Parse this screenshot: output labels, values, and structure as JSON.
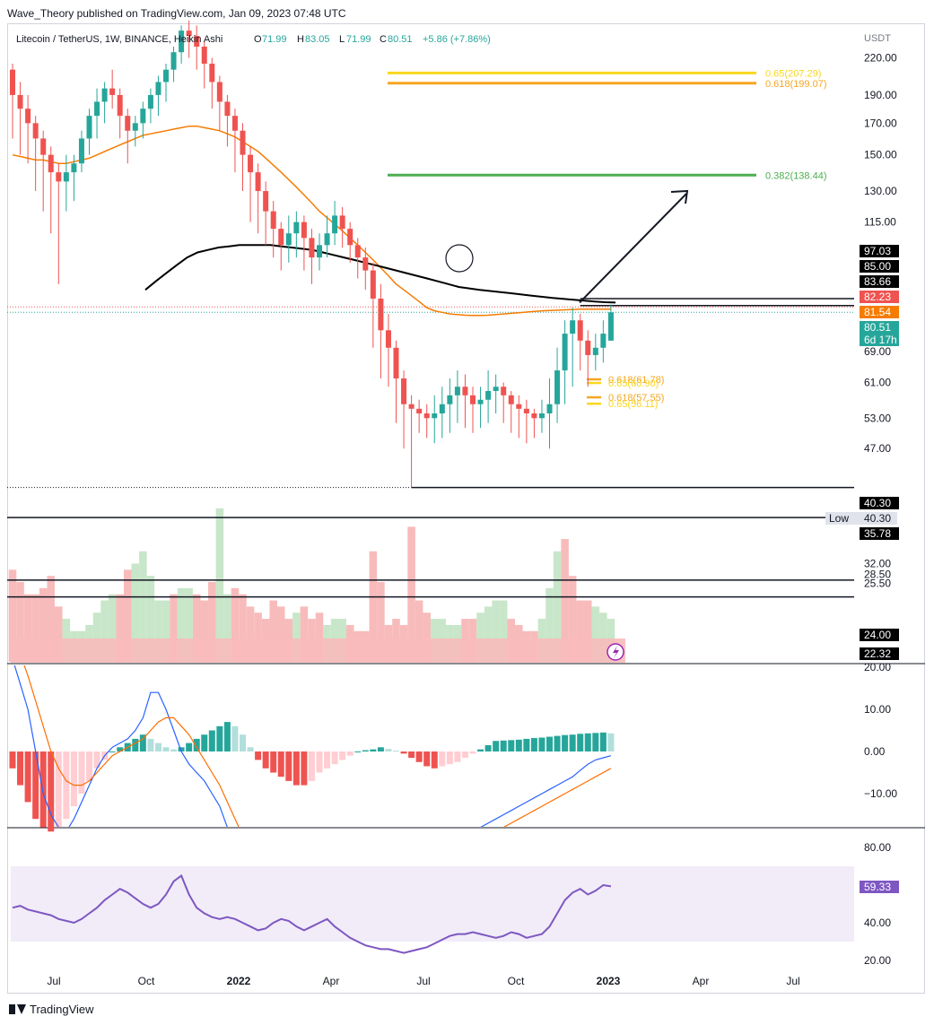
{
  "header": {
    "publisher": "Wave_Theory published on TradingView.com, Jan 09, 2023 07:48 UTC"
  },
  "legend": {
    "symbol": "Litecoin / TetherUS, 1W, BINANCE, Heikin Ashi",
    "o_label": "O",
    "o_value": "71.99",
    "h_label": "H",
    "h_value": "83.05",
    "l_label": "L",
    "l_value": "71.99",
    "c_label": "C",
    "c_value": "80.51",
    "change": "+5.86 (+7.86%)"
  },
  "footer": {
    "brand": "TradingView"
  },
  "colors": {
    "up": "#26a69a",
    "down": "#ef5350",
    "ema": "#f57c00",
    "ma200": "#000000",
    "fib_gold": "#f9d71c",
    "fib_orange": "#f5a623",
    "fib_green": "#4caf50",
    "macd": "#2962ff",
    "signal": "#ff6d00",
    "rsi": "#7e57c2",
    "vol_up": "#c8e6c9",
    "vol_down": "#f8bbbb"
  },
  "chart_data": [
    {
      "type": "candlestick",
      "name": "price",
      "scale": "log",
      "currency_label": "USDT",
      "x_ticks": [
        "Jul",
        "Oct",
        "2022",
        "Apr",
        "Jul",
        "Oct",
        "2023",
        "Apr",
        "Jul"
      ],
      "y_ticks": [
        "220.00",
        "190.00",
        "170.00",
        "150.00",
        "130.00",
        "115.00",
        "69.00",
        "61.00",
        "53.00",
        "47.00"
      ],
      "candles": [
        [
          210,
          190,
          215,
          160
        ],
        [
          190,
          180,
          200,
          150
        ],
        [
          180,
          170,
          190,
          145
        ],
        [
          170,
          160,
          175,
          130
        ],
        [
          160,
          150,
          165,
          120
        ],
        [
          150,
          140,
          155,
          110
        ],
        [
          140,
          135,
          145,
          90
        ],
        [
          135,
          140,
          150,
          120
        ],
        [
          140,
          145,
          150,
          125
        ],
        [
          145,
          160,
          165,
          140
        ],
        [
          160,
          175,
          180,
          150
        ],
        [
          175,
          185,
          195,
          160
        ],
        [
          185,
          195,
          200,
          170
        ],
        [
          195,
          190,
          210,
          180
        ],
        [
          190,
          175,
          195,
          160
        ],
        [
          175,
          165,
          180,
          145
        ],
        [
          165,
          170,
          175,
          155
        ],
        [
          170,
          180,
          185,
          160
        ],
        [
          180,
          190,
          195,
          170
        ],
        [
          190,
          200,
          205,
          175
        ],
        [
          200,
          210,
          215,
          185
        ],
        [
          210,
          225,
          230,
          200
        ],
        [
          225,
          245,
          250,
          215
        ],
        [
          245,
          240,
          255,
          220
        ],
        [
          240,
          230,
          250,
          210
        ],
        [
          230,
          215,
          235,
          195
        ],
        [
          215,
          200,
          220,
          180
        ],
        [
          200,
          185,
          205,
          165
        ],
        [
          185,
          175,
          190,
          155
        ],
        [
          175,
          165,
          180,
          140
        ],
        [
          165,
          150,
          170,
          130
        ],
        [
          150,
          140,
          155,
          115
        ],
        [
          140,
          130,
          145,
          110
        ],
        [
          130,
          120,
          135,
          105
        ],
        [
          120,
          112,
          125,
          100
        ],
        [
          112,
          105,
          115,
          95
        ],
        [
          105,
          110,
          118,
          98
        ],
        [
          110,
          115,
          120,
          100
        ],
        [
          115,
          108,
          118,
          95
        ],
        [
          108,
          100,
          112,
          90
        ],
        [
          100,
          105,
          110,
          95
        ],
        [
          105,
          110,
          118,
          100
        ],
        [
          110,
          118,
          125,
          105
        ],
        [
          118,
          112,
          122,
          104
        ],
        [
          112,
          105,
          115,
          98
        ],
        [
          105,
          100,
          108,
          92
        ],
        [
          100,
          95,
          104,
          88
        ],
        [
          95,
          85,
          98,
          70
        ],
        [
          85,
          75,
          90,
          62
        ],
        [
          75,
          70,
          80,
          60
        ],
        [
          70,
          62,
          72,
          52
        ],
        [
          62,
          56,
          64,
          47
        ],
        [
          56,
          55,
          58,
          40.3
        ],
        [
          55,
          54,
          57,
          50
        ],
        [
          54,
          53,
          56,
          49
        ],
        [
          53,
          54,
          58,
          48
        ],
        [
          54,
          56,
          60,
          49
        ],
        [
          56,
          58,
          62,
          50
        ],
        [
          58,
          60,
          64,
          52
        ],
        [
          60,
          58,
          63,
          51
        ],
        [
          58,
          56,
          60,
          50
        ],
        [
          56,
          57,
          60,
          51
        ],
        [
          57,
          59,
          64,
          52
        ],
        [
          59,
          60,
          63,
          54
        ],
        [
          60,
          58,
          61,
          52
        ],
        [
          58,
          56,
          59,
          50
        ],
        [
          56,
          55,
          58,
          49
        ],
        [
          55,
          54,
          57,
          48
        ],
        [
          54,
          53,
          55,
          49
        ],
        [
          53,
          54,
          57,
          50
        ],
        [
          54,
          56,
          62,
          47
        ],
        [
          56,
          64,
          70,
          52
        ],
        [
          64,
          74,
          78,
          56
        ],
        [
          74,
          78,
          82,
          60
        ],
        [
          78,
          72,
          80,
          64
        ],
        [
          72,
          68,
          75,
          60
        ],
        [
          68,
          70,
          74,
          64
        ],
        [
          70,
          74,
          78,
          66
        ],
        [
          71.99,
          80.51,
          83.05,
          71.99
        ]
      ],
      "ema": [
        150,
        149,
        148,
        147,
        147,
        146,
        145,
        145,
        146,
        147,
        148,
        150,
        152,
        154,
        156,
        158,
        160,
        162,
        163,
        164,
        165,
        166,
        167,
        168,
        168,
        167,
        166,
        165,
        163,
        161,
        158,
        155,
        152,
        148,
        144,
        140,
        136,
        132,
        128,
        124,
        120,
        117,
        114,
        111,
        108,
        105,
        102,
        99,
        96,
        93,
        90,
        88,
        86,
        84,
        82,
        81,
        80.5,
        80,
        79.8,
        79.6,
        79.5,
        79.5,
        79.6,
        79.8,
        80,
        80.2,
        80.4,
        80.6,
        80.8,
        81,
        81.1,
        81.2,
        81.3,
        81.4,
        81.5,
        81.5,
        81.5,
        81.54,
        81.54
      ],
      "ma200_start_index": 14,
      "ma200": [
        88,
        91,
        94,
        97,
        100,
        102,
        103,
        104,
        104.5,
        105,
        105,
        105,
        105,
        104.5,
        104,
        103.5,
        103,
        102,
        101,
        100,
        99,
        98,
        97,
        96,
        95,
        94,
        93,
        92,
        91,
        90,
        89,
        88.5,
        88,
        87.6,
        87.2,
        86.8,
        86.4,
        86,
        85.6,
        85.2,
        84.9,
        84.6,
        84.3,
        84,
        83.8,
        83.66
      ],
      "swing_low": 40.3,
      "swing_low_index": 52,
      "breakout_index": 76,
      "arrow_start": 83.66,
      "arrow_target": 138.44,
      "fib_levels": [
        {
          "label": "0.65(207.29)",
          "value": 207.29,
          "color": "#f9d71c"
        },
        {
          "label": "0.618(199.07)",
          "value": 199.07,
          "color": "#f5a623"
        },
        {
          "label": "0.382(138.44)",
          "value": 138.44,
          "color": "#4caf50"
        },
        {
          "label": "0.618(61.78)",
          "value": 61.78,
          "color": "#f5a623"
        },
        {
          "label": "0.65(60.90)",
          "value": 60.9,
          "color": "#f9d71c"
        },
        {
          "label": "0.618(57.55)",
          "value": 57.55,
          "color": "#f5a623"
        },
        {
          "label": "0.65(56.11)",
          "value": 56.11,
          "color": "#f9d71c"
        }
      ],
      "price_labels": [
        {
          "text": "97.03",
          "value": 97.03,
          "bg": "#000000",
          "fg": "#ffffff"
        },
        {
          "text": "85.00",
          "value": 85.0,
          "bg": "#000000",
          "fg": "#ffffff"
        },
        {
          "text": "83.66",
          "value": 83.66,
          "bg": "#000000",
          "fg": "#ffffff"
        },
        {
          "text": "82.23",
          "value": 82.23,
          "bg": "#ef5350",
          "fg": "#ffffff"
        },
        {
          "text": "81.54",
          "value": 81.54,
          "bg": "#f57c00",
          "fg": "#ffffff"
        },
        {
          "text": "80.51",
          "sub": "6d 17h",
          "value": 80.51,
          "bg": "#26a69a",
          "fg": "#ffffff"
        },
        {
          "text": "40.30",
          "value": 40.3,
          "bg": "#000000",
          "fg": "#ffffff"
        },
        {
          "text": "40.30",
          "prefix": "Low",
          "value": 40.3,
          "bg": "#e0e3eb",
          "fg": "#131722"
        },
        {
          "text": "35.78",
          "value": 35.78,
          "bg": "#000000",
          "fg": "#ffffff"
        }
      ]
    },
    {
      "type": "area",
      "name": "volume",
      "y_ticks": [
        "32.00",
        "28.50",
        "25.50"
      ],
      "values": [
        30,
        26,
        22,
        22,
        24,
        28,
        18,
        14,
        10,
        10,
        12,
        16,
        20,
        22,
        22,
        30,
        32,
        36,
        28,
        20,
        20,
        22,
        24,
        24,
        22,
        20,
        26,
        50,
        22,
        24,
        22,
        18,
        16,
        14,
        20,
        18,
        14,
        16,
        18,
        14,
        16,
        12,
        14,
        14,
        12,
        10,
        10,
        36,
        26,
        12,
        14,
        12,
        44,
        20,
        16,
        14,
        14,
        12,
        12,
        14,
        14,
        16,
        18,
        20,
        20,
        14,
        12,
        10,
        10,
        14,
        24,
        36,
        40,
        28,
        20,
        20,
        18,
        16,
        14
      ],
      "down_flags": [
        1,
        1,
        1,
        1,
        1,
        1,
        1,
        0,
        0,
        0,
        0,
        0,
        0,
        0,
        1,
        1,
        0,
        0,
        0,
        0,
        0,
        1,
        0,
        0,
        1,
        1,
        1,
        0,
        0,
        1,
        1,
        1,
        1,
        1,
        1,
        1,
        1,
        0,
        1,
        1,
        1,
        0,
        0,
        0,
        1,
        1,
        1,
        1,
        1,
        1,
        1,
        1,
        1,
        1,
        1,
        0,
        0,
        0,
        0,
        1,
        1,
        0,
        0,
        0,
        0,
        1,
        1,
        1,
        1,
        0,
        0,
        0,
        1,
        1,
        1,
        1,
        0,
        0,
        0
      ],
      "right_labels": [
        {
          "text": "24.00",
          "value": 24.0,
          "bg": "#000000",
          "fg": "#ffffff"
        },
        {
          "text": "22.32",
          "value": 22.32,
          "bg": "#000000",
          "fg": "#ffffff"
        }
      ]
    },
    {
      "type": "bar",
      "name": "macd",
      "y_ticks": [
        "20.00",
        "10.00",
        "0.00",
        "−10.00"
      ],
      "histogram": [
        -4,
        -8,
        -12,
        -16,
        -18,
        -19,
        -18,
        -16,
        -13,
        -10,
        -7,
        -4,
        -2,
        0,
        1,
        2,
        3,
        4,
        3,
        2,
        1,
        0.5,
        1,
        2,
        3,
        4,
        5,
        6,
        7,
        6,
        4,
        1,
        -2,
        -4,
        -5,
        -6,
        -7,
        -8,
        -8,
        -7,
        -5,
        -4,
        -3,
        -2,
        -1,
        0,
        0.3,
        0.5,
        1,
        0.6,
        0.2,
        -0.5,
        -1.5,
        -2.5,
        -3.5,
        -4,
        -3.5,
        -3,
        -2.5,
        -1.5,
        -0.5,
        0.5,
        1.5,
        2.5,
        2.6,
        2.7,
        2.8,
        3,
        3.2,
        3.3,
        3.5,
        3.7,
        3.9,
        4,
        4.2,
        4.3,
        4.4,
        4.5,
        4.3
      ],
      "macd_line": [
        22,
        16,
        10,
        0,
        -10,
        -15,
        -18,
        -19,
        -16,
        -12,
        -8,
        -4,
        -1,
        1,
        2,
        3,
        5,
        8,
        14,
        14,
        10,
        5,
        0,
        -3,
        -5,
        -7,
        -10,
        -13,
        -18,
        -22,
        -27,
        -30,
        -31,
        -31,
        -32,
        -30,
        -28,
        -27,
        -26,
        -26,
        -27,
        -28,
        -29,
        -30,
        -30,
        -31,
        -32,
        -33,
        -33,
        -32,
        -31,
        -30,
        -29,
        -28,
        -27,
        -26,
        -25,
        -23,
        -22,
        -20,
        -19,
        -18,
        -17,
        -16,
        -15,
        -14,
        -13,
        -12,
        -11,
        -10,
        -9,
        -8,
        -7,
        -6,
        -4.5,
        -3,
        -2,
        -1.5,
        -1
      ],
      "signal_line": [
        25,
        23,
        18,
        12,
        6,
        0,
        -4,
        -7,
        -8,
        -8,
        -7,
        -5,
        -3,
        -1,
        0,
        1,
        2,
        3,
        5,
        7,
        8,
        8,
        6,
        4,
        1,
        -2,
        -5,
        -8,
        -12,
        -16,
        -20,
        -24,
        -27,
        -29,
        -30,
        -30,
        -30,
        -30,
        -29,
        -28,
        -28,
        -28,
        -29,
        -30,
        -31,
        -32,
        -33,
        -33,
        -33,
        -33,
        -32,
        -31,
        -30,
        -29,
        -28,
        -27,
        -26,
        -25,
        -24,
        -23,
        -22,
        -21,
        -20,
        -19,
        -18,
        -17,
        -16,
        -15,
        -14,
        -13,
        -12,
        -11,
        -10,
        -9,
        -8,
        -7,
        -6,
        -5,
        -4
      ]
    },
    {
      "type": "line",
      "name": "rsi",
      "y_ticks": [
        "80.00",
        "40.00",
        "20.00"
      ],
      "band": [
        30,
        70
      ],
      "last_label": "59.33",
      "values": [
        48,
        49,
        47,
        46,
        45,
        44,
        42,
        41,
        40,
        42,
        45,
        48,
        52,
        55,
        58,
        56,
        53,
        50,
        48,
        50,
        55,
        62,
        65,
        55,
        48,
        45,
        43,
        42,
        43,
        42,
        40,
        38,
        36,
        37,
        40,
        42,
        41,
        38,
        36,
        38,
        40,
        42,
        38,
        35,
        32,
        30,
        28,
        27,
        26,
        26,
        25,
        24,
        25,
        26,
        27,
        29,
        31,
        33,
        34,
        34,
        35,
        34,
        33,
        32,
        33,
        35,
        34,
        32,
        33,
        34,
        38,
        45,
        52,
        56,
        58,
        55,
        57,
        60,
        59.33
      ]
    }
  ]
}
